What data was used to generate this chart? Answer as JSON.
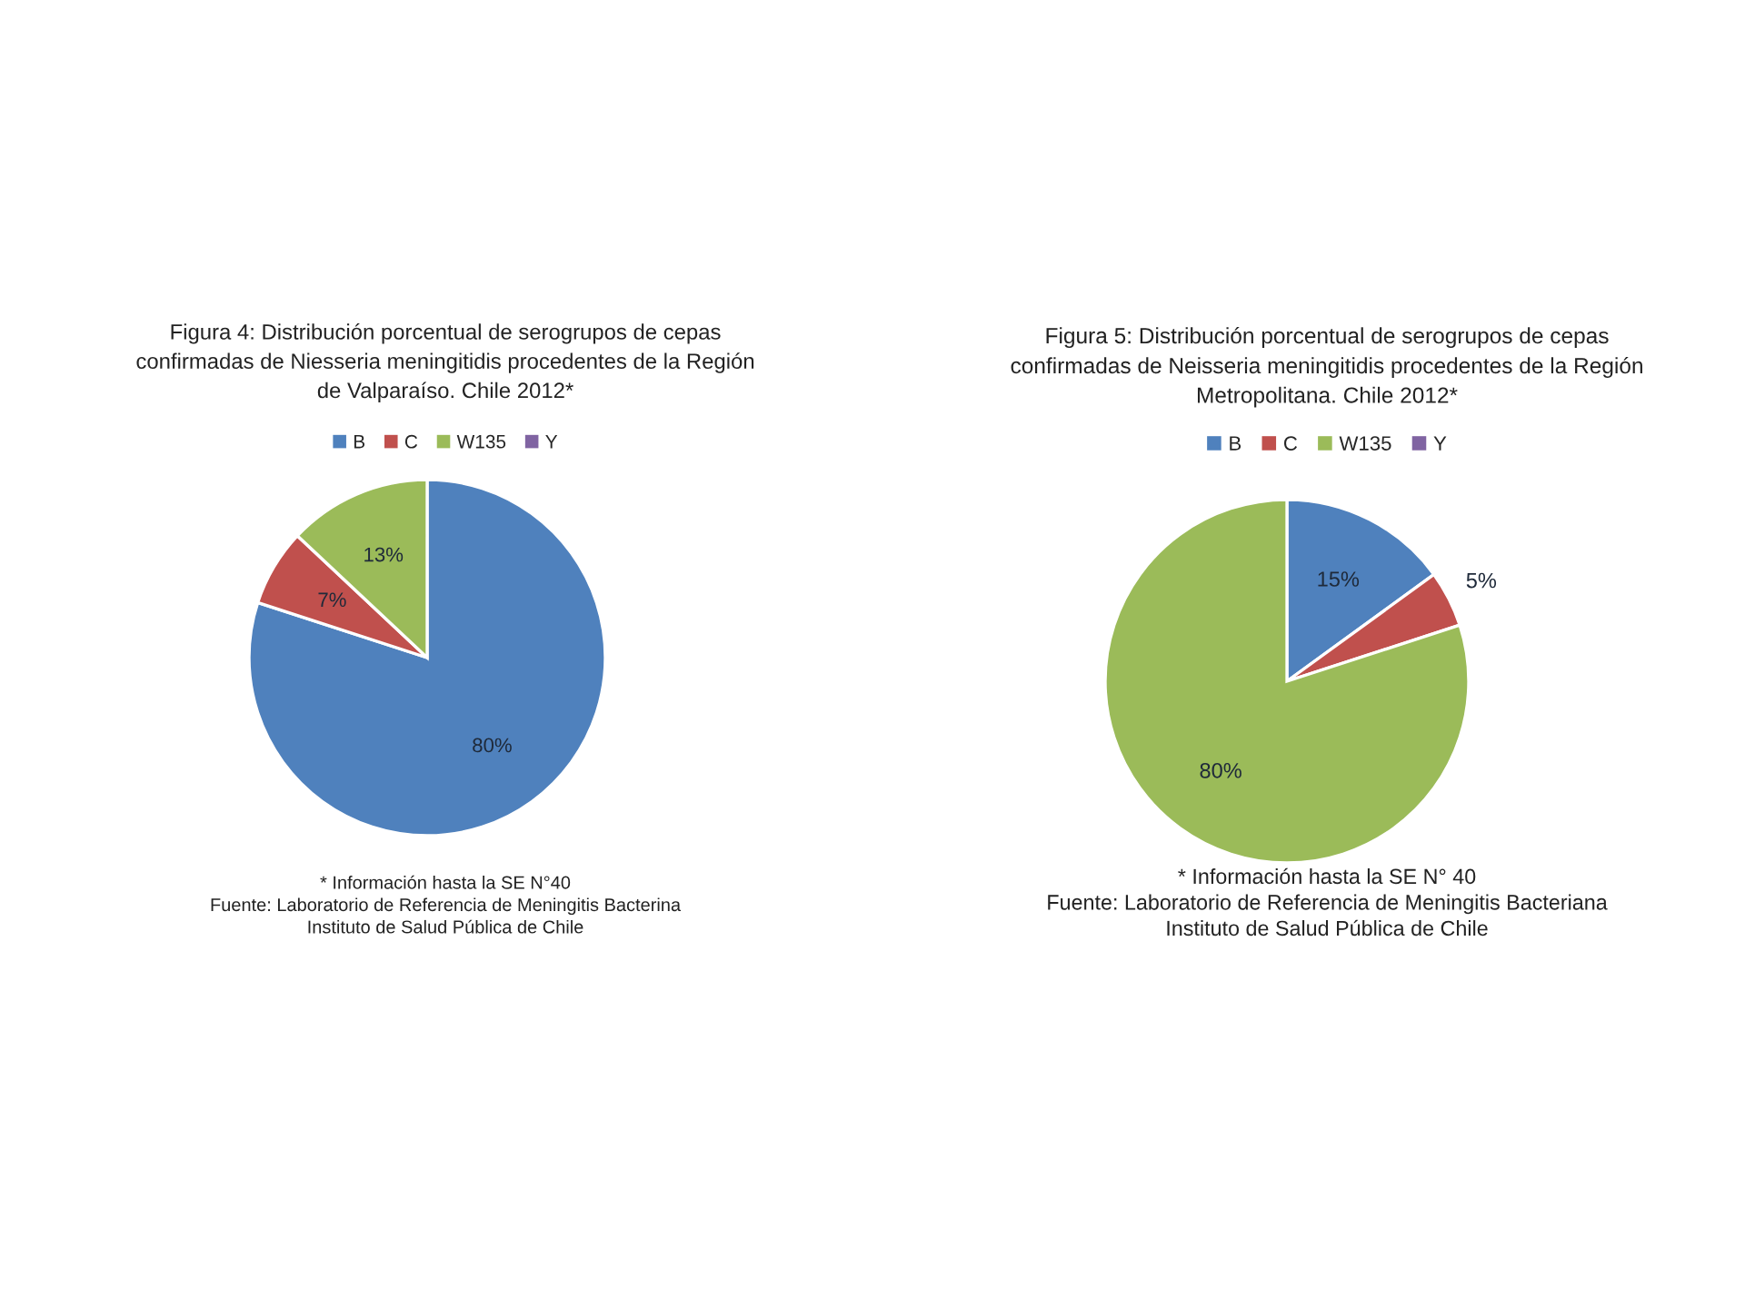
{
  "chart_data": [
    {
      "type": "pie",
      "title": "Figura 4: Distribución porcentual de serogrupos de cepas\nconfirmadas de Niesseria meningitidis procedentes de la Región\nde Valparaíso. Chile 2012*",
      "categories": [
        "B",
        "C",
        "W135",
        "Y"
      ],
      "values": [
        80,
        7,
        13,
        0
      ],
      "colors": [
        "#4f81bd",
        "#c0504d",
        "#9bbb59",
        "#8064a2"
      ],
      "value_labels": [
        "80%",
        "7%",
        "13%",
        null
      ],
      "legend": "top",
      "annotations": [
        "* Información hasta la SE N°40",
        "Fuente: Laboratorio de Referencia de Meningitis Bacterina",
        "Instituto de Salud Pública de Chile"
      ]
    },
    {
      "type": "pie",
      "title": "Figura 5: Distribución porcentual de serogrupos de cepas\nconfirmadas de Neisseria meningitidis procedentes de la Región\nMetropolitana. Chile 2012*",
      "categories": [
        "B",
        "C",
        "W135",
        "Y"
      ],
      "values": [
        15,
        5,
        80,
        0
      ],
      "colors": [
        "#4f81bd",
        "#c0504d",
        "#9bbb59",
        "#8064a2"
      ],
      "value_labels": [
        "15%",
        "5%",
        "80%",
        null
      ],
      "legend": "top",
      "annotations": [
        "* Información hasta la SE N° 40",
        "Fuente: Laboratorio de Referencia de Meningitis Bacteriana",
        "Instituto de Salud Pública de Chile"
      ]
    }
  ]
}
